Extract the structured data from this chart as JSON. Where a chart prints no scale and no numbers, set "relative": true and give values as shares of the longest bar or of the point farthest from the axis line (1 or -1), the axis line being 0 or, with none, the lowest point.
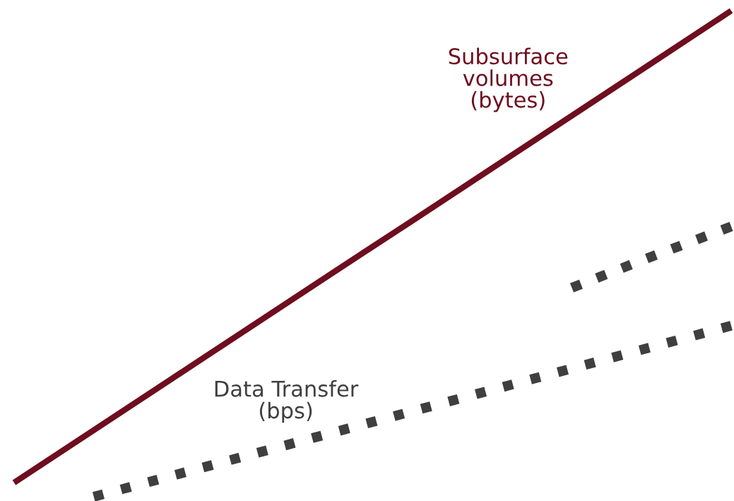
{
  "chart_data": {
    "type": "line",
    "relative": true,
    "categories": [
      null,
      null,
      null,
      null,
      null,
      null,
      null,
      null,
      null,
      null
    ],
    "series": [
      {
        "name": "Subsurface\nvolumes\n(bytes)",
        "color": "#6e0e1e",
        "line_style": "solid",
        "values": [
          0.029,
          0.137,
          0.245,
          0.353,
          0.461,
          0.568,
          0.676,
          0.784,
          0.892,
          1.0
        ]
      },
      {
        "name": "Data Transfer\n(bps)",
        "color": "#3f3f3f",
        "line_style": "dotted",
        "values": [
          null,
          0.0,
          0.044,
          0.088,
          0.132,
          0.176,
          0.22,
          0.264,
          0.308,
          0.352
        ]
      },
      {
        "color": "#3f3f3f",
        "line_style": "dotted",
        "values": [
          null,
          null,
          null,
          null,
          null,
          null,
          null,
          0.43,
          0.494,
          0.556
        ]
      }
    ]
  }
}
